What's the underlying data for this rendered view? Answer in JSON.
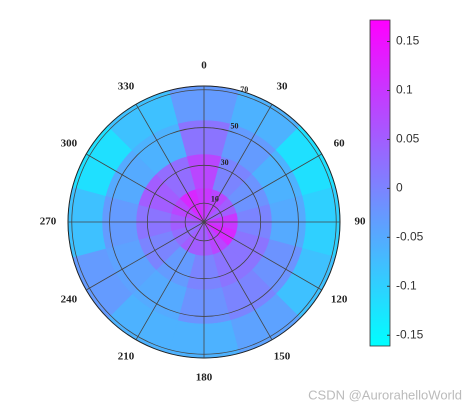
{
  "chart_data": {
    "type": "polar-heatmap",
    "theta": [
      0,
      30,
      60,
      90,
      120,
      150,
      180,
      210,
      240,
      270,
      300,
      330
    ],
    "r_bins": [
      0,
      18,
      36,
      54,
      72
    ],
    "values": [
      [
        0.1,
        0.08,
        0.05,
        0.1,
        0.12,
        0.08,
        0.05,
        0.05,
        0.03,
        0.05,
        0.08,
        0.12
      ],
      [
        0.08,
        0.0,
        -0.02,
        0.0,
        0.02,
        0.02,
        0.0,
        -0.03,
        0.0,
        0.02,
        0.05,
        0.03
      ],
      [
        0.02,
        -0.03,
        -0.06,
        -0.05,
        -0.02,
        0.0,
        -0.02,
        -0.05,
        -0.04,
        -0.03,
        -0.05,
        -0.06
      ],
      [
        -0.03,
        -0.06,
        -0.12,
        -0.1,
        -0.08,
        -0.04,
        -0.06,
        -0.06,
        -0.03,
        -0.08,
        -0.12,
        -0.08
      ]
    ],
    "thetaticks": [
      0,
      30,
      60,
      90,
      120,
      150,
      180,
      210,
      240,
      270,
      300,
      330
    ],
    "rlim": [
      0,
      72
    ],
    "rticks": [
      10,
      30,
      50,
      70
    ],
    "colormap": [
      "#00ffff",
      "#ff00ff"
    ],
    "clim": [
      -0.161,
      0.172
    ],
    "cticks": [
      0.15,
      0.1,
      0.05,
      0,
      -0.05,
      -0.1,
      -0.15
    ],
    "watermark": "CSDN @AurorahelloWorld"
  }
}
